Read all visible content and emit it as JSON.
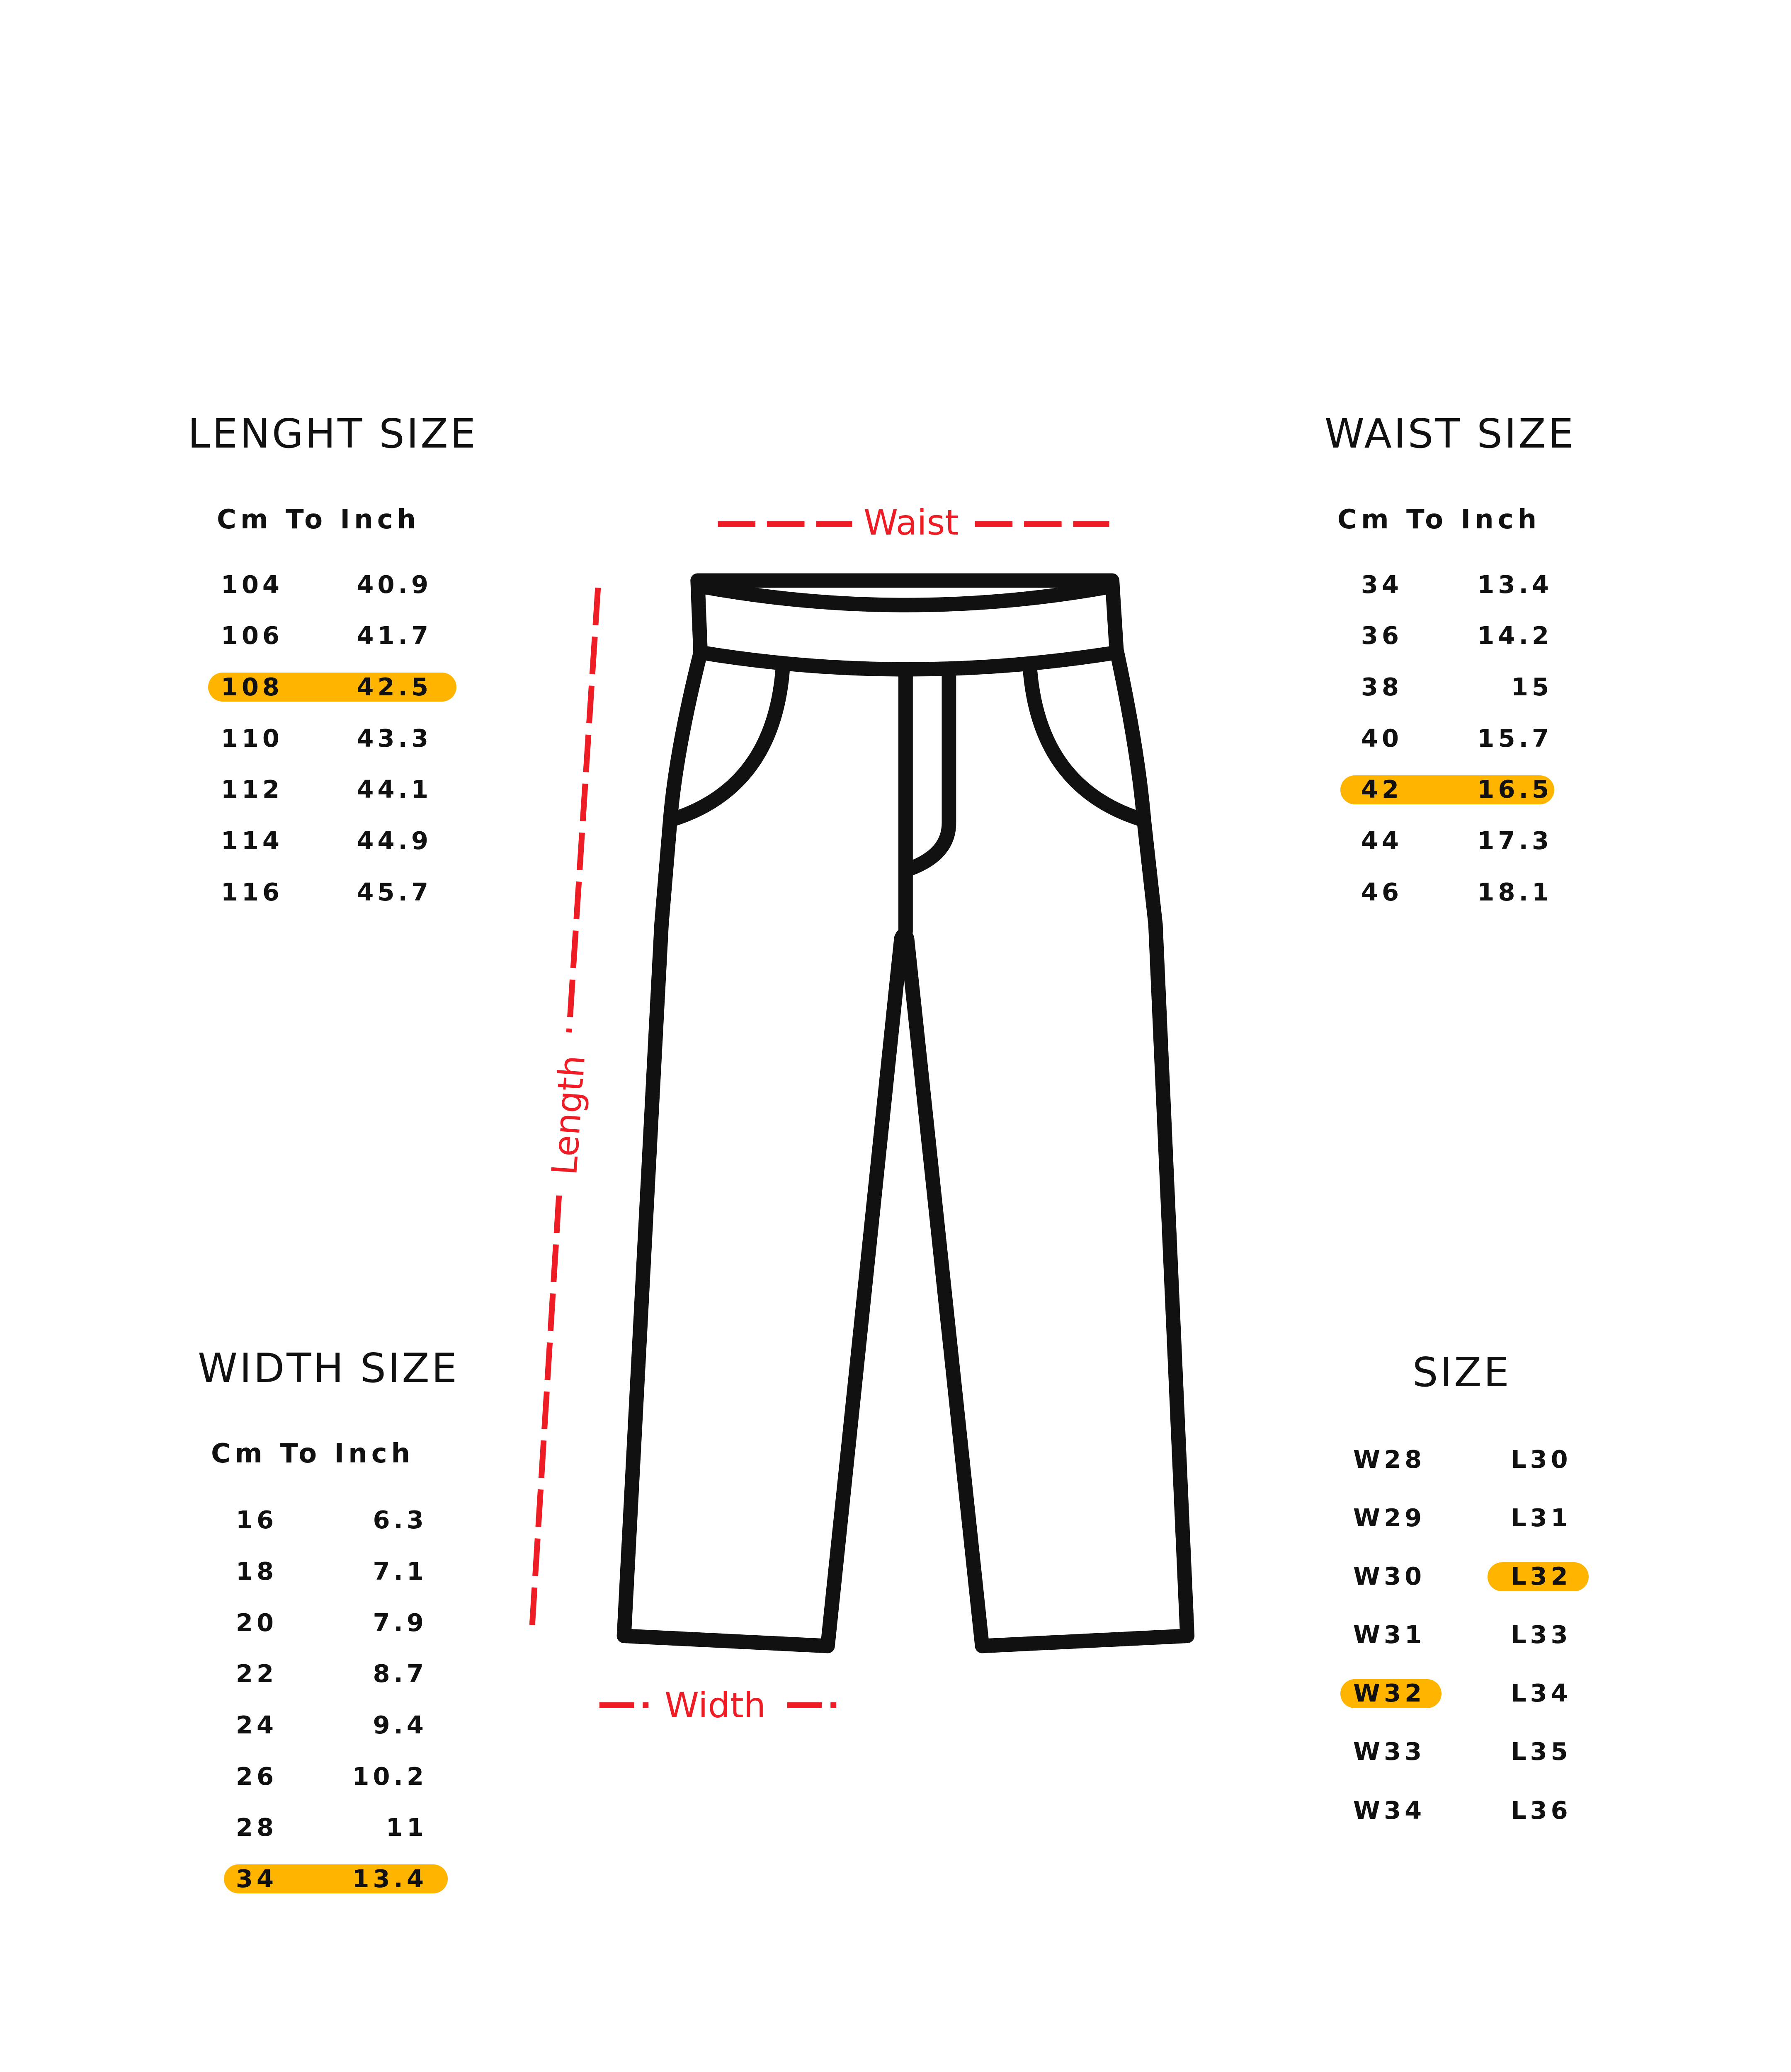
{
  "length_size": {
    "title": "LENGHT SIZE",
    "subtitle": "Cm To Inch",
    "rows": [
      {
        "cm": "104",
        "inch": "40.9"
      },
      {
        "cm": "106",
        "inch": "41.7"
      },
      {
        "cm": "108",
        "inch": "42.5",
        "highlighted": true
      },
      {
        "cm": "110",
        "inch": "43.3"
      },
      {
        "cm": "112",
        "inch": "44.1"
      },
      {
        "cm": "114",
        "inch": "44.9"
      },
      {
        "cm": "116",
        "inch": "45.7"
      }
    ]
  },
  "waist_size": {
    "title": "WAIST SIZE",
    "subtitle": "Cm To Inch",
    "rows": [
      {
        "cm": "34",
        "inch": "13.4"
      },
      {
        "cm": "36",
        "inch": "14.2"
      },
      {
        "cm": "38",
        "inch": "15"
      },
      {
        "cm": "40",
        "inch": "15.7"
      },
      {
        "cm": "42",
        "inch": "16.5",
        "highlighted": true
      },
      {
        "cm": "44",
        "inch": "17.3"
      },
      {
        "cm": "46",
        "inch": "18.1"
      }
    ]
  },
  "width_size": {
    "title": "WIDTH SIZE",
    "subtitle": "Cm To Inch",
    "rows": [
      {
        "cm": "16",
        "inch": "6.3"
      },
      {
        "cm": "18",
        "inch": "7.1"
      },
      {
        "cm": "20",
        "inch": "7.9"
      },
      {
        "cm": "22",
        "inch": "8.7"
      },
      {
        "cm": "24",
        "inch": "9.4"
      },
      {
        "cm": "26",
        "inch": "10.2"
      },
      {
        "cm": "28",
        "inch": "11"
      },
      {
        "cm": "34",
        "inch": "13.4",
        "highlighted": true
      }
    ]
  },
  "size": {
    "title": "SIZE",
    "waist": [
      "W28",
      "W29",
      "W30",
      "W31",
      "W32",
      "W33",
      "W34"
    ],
    "length": [
      "L30",
      "L31",
      "L32",
      "L33",
      "L34",
      "L35",
      "L36"
    ],
    "highlighted_waist": "W32",
    "highlighted_length": "L32"
  },
  "diagram": {
    "waist_label": "Waist",
    "length_label": "Length",
    "width_label": "Width"
  },
  "colors": {
    "highlight": "#FFB400",
    "measure": "#EE1C25",
    "outline": "#111111"
  }
}
